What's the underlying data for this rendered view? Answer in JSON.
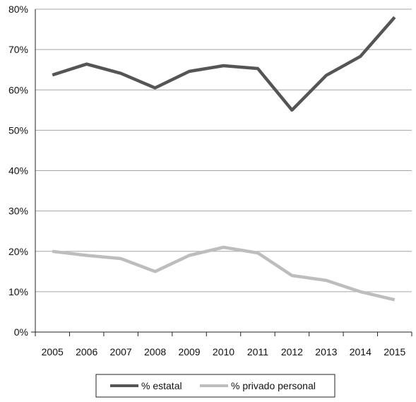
{
  "chart_data": {
    "type": "line",
    "title": "",
    "xlabel": "",
    "ylabel": "",
    "categories": [
      "2005",
      "2006",
      "2007",
      "2008",
      "2009",
      "2010",
      "2011",
      "2012",
      "2013",
      "2014",
      "2015"
    ],
    "ylim": [
      0,
      80
    ],
    "y_ticks": [
      "0%",
      "10%",
      "20%",
      "30%",
      "40%",
      "50%",
      "60%",
      "70%",
      "80%"
    ],
    "grid": "horizontal",
    "legend_position": "bottom",
    "series": [
      {
        "name": "% estatal",
        "color": "#555555",
        "values": [
          63.7,
          66.4,
          64.1,
          60.5,
          64.6,
          66.0,
          65.3,
          55.0,
          63.6,
          68.3,
          78.0
        ]
      },
      {
        "name": "% privado personal",
        "color": "#bdbdbd",
        "values": [
          20.0,
          19.0,
          18.2,
          15.0,
          19.0,
          21.0,
          19.6,
          14.0,
          12.8,
          10.0,
          8.0
        ]
      }
    ]
  }
}
